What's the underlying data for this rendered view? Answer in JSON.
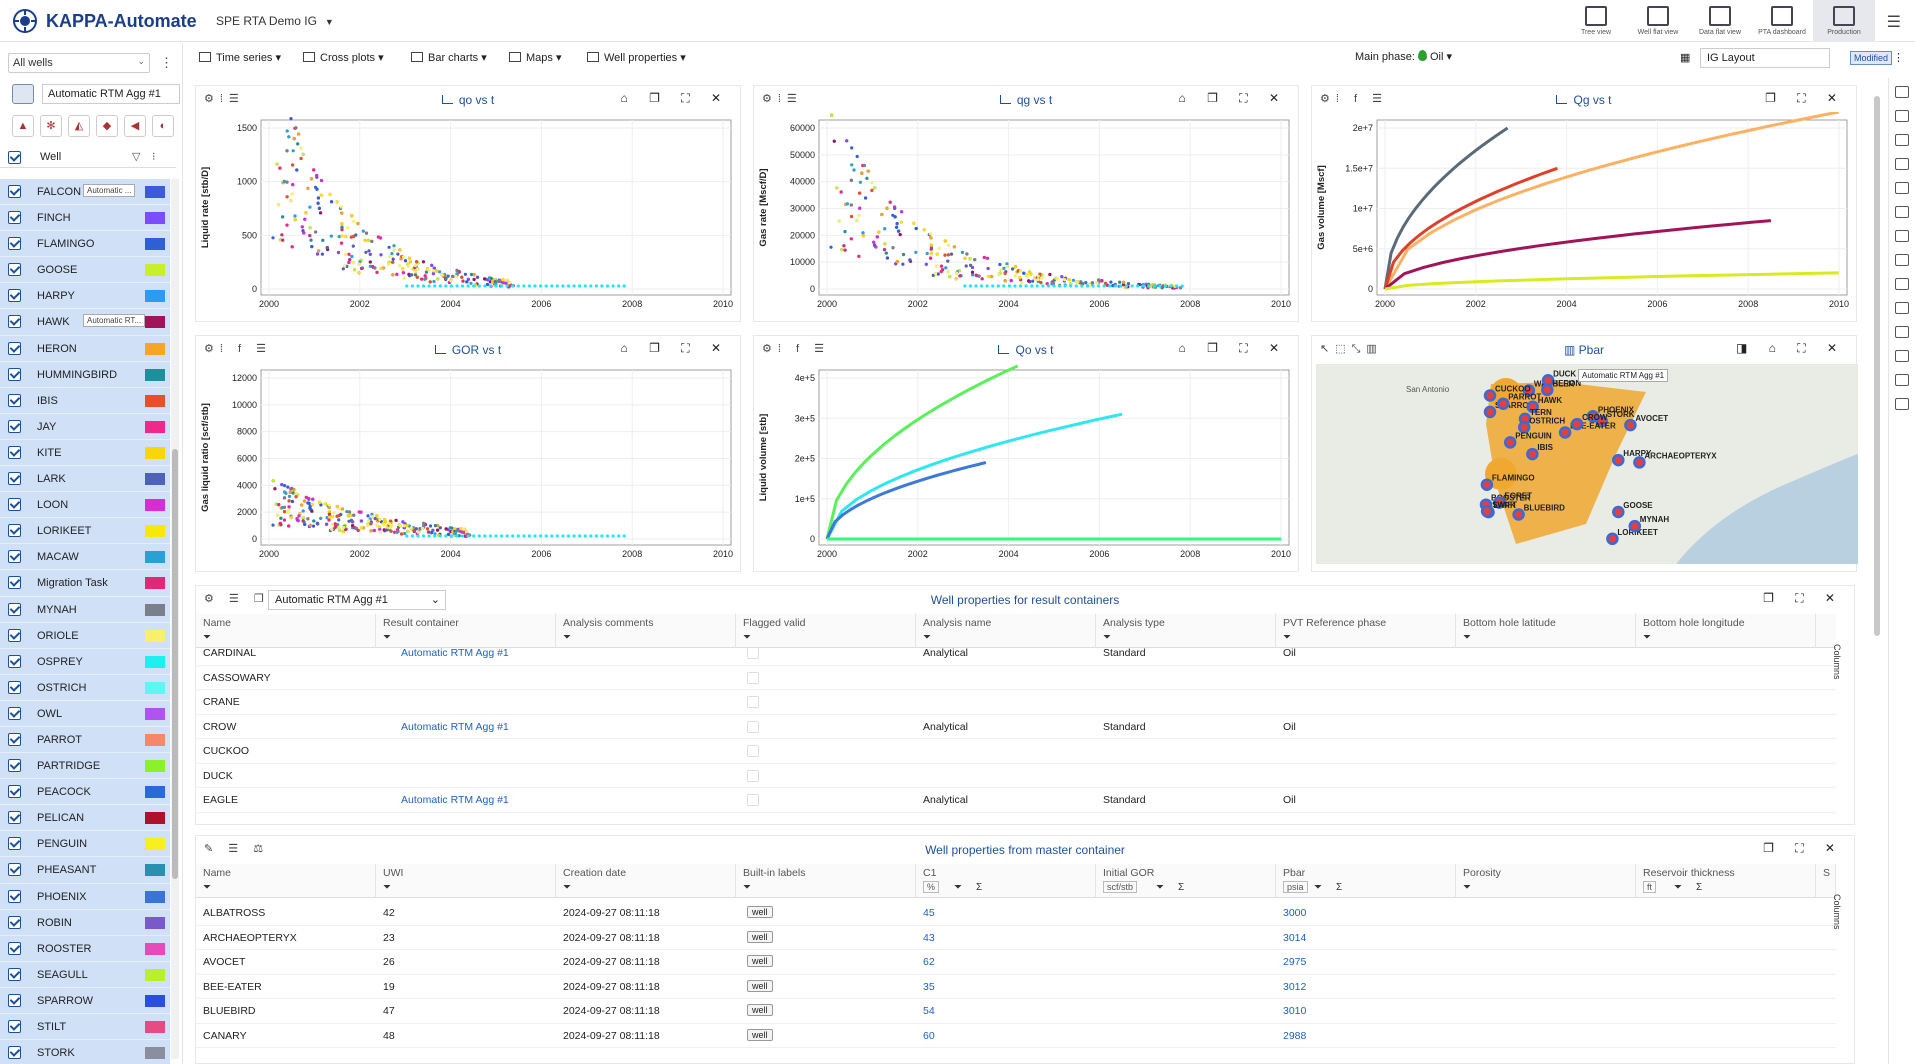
{
  "app": {
    "title": "KAPPA-Automate",
    "project": "SPE RTA Demo IG"
  },
  "views": [
    {
      "label": "Tree view",
      "icon": "tree-view-icon"
    },
    {
      "label": "Well flat view",
      "icon": "well-flat-view-icon"
    },
    {
      "label": "Data flat view",
      "icon": "data-flat-view-icon"
    },
    {
      "label": "PTA dashboard",
      "icon": "pta-dashboard-icon"
    },
    {
      "label": "Production",
      "icon": "production-icon"
    }
  ],
  "sidebar": {
    "filter": "All wells",
    "container": "Automatic RTM Agg #1",
    "column": "Well",
    "wells": [
      {
        "name": "FALCON",
        "tag": "Automatic ...",
        "color": "#3b5bdb"
      },
      {
        "name": "FINCH",
        "color": "#7b4dff"
      },
      {
        "name": "FLAMINGO",
        "color": "#2f5fd4"
      },
      {
        "name": "GOOSE",
        "color": "#c8f02a"
      },
      {
        "name": "HARPY",
        "color": "#2d9cf0"
      },
      {
        "name": "HAWK",
        "tag": "Automatic RT...",
        "color": "#a0155a"
      },
      {
        "name": "HERON",
        "color": "#f5a623"
      },
      {
        "name": "HUMMINGBIRD",
        "color": "#1f8f9c"
      },
      {
        "name": "IBIS",
        "color": "#e8502a"
      },
      {
        "name": "JAY",
        "color": "#f0288c"
      },
      {
        "name": "KITE",
        "color": "#f7d70a"
      },
      {
        "name": "LARK",
        "color": "#4f62b8"
      },
      {
        "name": "LOON",
        "color": "#d62ed6"
      },
      {
        "name": "LORIKEET",
        "color": "#f5e80a"
      },
      {
        "name": "MACAW",
        "color": "#2aa0d4"
      },
      {
        "name": "Migration Task",
        "color": "#e02876"
      },
      {
        "name": "MYNAH",
        "color": "#7a7f8c"
      },
      {
        "name": "ORIOLE",
        "color": "#f7f06a"
      },
      {
        "name": "OSPREY",
        "color": "#1ef0f0"
      },
      {
        "name": "OSTRICH",
        "color": "#5ff5f0"
      },
      {
        "name": "OWL",
        "color": "#b054f0"
      },
      {
        "name": "PARROT",
        "color": "#f5886a"
      },
      {
        "name": "PARTRIDGE",
        "color": "#8cf02a"
      },
      {
        "name": "PEACOCK",
        "color": "#2a6ad4"
      },
      {
        "name": "PELICAN",
        "color": "#b0102a"
      },
      {
        "name": "PENGUIN",
        "color": "#f7f01e"
      },
      {
        "name": "PHEASANT",
        "color": "#2a8fb0"
      },
      {
        "name": "PHOENIX",
        "color": "#3a74d8"
      },
      {
        "name": "ROBIN",
        "color": "#7a5ac8"
      },
      {
        "name": "ROOSTER",
        "color": "#e84ab8"
      },
      {
        "name": "SEAGULL",
        "color": "#b8f02a"
      },
      {
        "name": "SPARROW",
        "color": "#2a4fe0"
      },
      {
        "name": "STILT",
        "color": "#e84a84"
      },
      {
        "name": "STORK",
        "color": "#8a8fa0"
      }
    ]
  },
  "toolbar": {
    "time_series": "Time series",
    "cross_plots": "Cross plots",
    "bar_charts": "Bar charts",
    "maps": "Maps",
    "well_properties": "Well properties",
    "main_phase_label": "Main phase:",
    "main_phase": "Oil",
    "layout": "IG Layout",
    "modified": "Modified"
  },
  "charts": {
    "qo": {
      "title": "qo vs t",
      "ylabel": "Liquid rate [stb/D]",
      "yticks": [
        "0",
        "500",
        "1000",
        "1500"
      ],
      "xticks": [
        "2000",
        "2002",
        "2004",
        "2006",
        "2008",
        "2010"
      ]
    },
    "qg": {
      "title": "qg vs t",
      "ylabel": "Gas rate [Mscf/D]",
      "yticks": [
        "0",
        "10000",
        "20000",
        "30000",
        "40000",
        "50000",
        "60000"
      ],
      "xticks": [
        "2000",
        "2002",
        "2004",
        "2006",
        "2008",
        "2010"
      ]
    },
    "Qg": {
      "title": "Qg vs t",
      "ylabel": "Gas volume [Mscf]",
      "yticks": [
        "0",
        "5e+6",
        "1e+7",
        "1.5e+7",
        "2e+7"
      ],
      "xticks": [
        "2000",
        "2002",
        "2004",
        "2006",
        "2008",
        "2010"
      ]
    },
    "gor": {
      "title": "GOR vs t",
      "ylabel": "Gas liquid ratio [scf/stb]",
      "yticks": [
        "0",
        "2000",
        "4000",
        "6000",
        "8000",
        "10000",
        "12000"
      ],
      "xticks": [
        "2000",
        "2002",
        "2004",
        "2006",
        "2008",
        "2010"
      ]
    },
    "Qo": {
      "title": "Qo vs t",
      "ylabel": "Liquid volume [stb]",
      "yticks": [
        "0",
        "1e+5",
        "2e+5",
        "3e+5",
        "4e+5"
      ],
      "xticks": [
        "2000",
        "2002",
        "2004",
        "2006",
        "2008",
        "2010"
      ]
    },
    "pbar": {
      "title": "Pbar",
      "tag": "Automatic RTM Agg #1",
      "city": "San Antonio"
    }
  },
  "chart_data": [
    {
      "type": "scatter",
      "title": "qo vs t",
      "ylabel": "Liquid rate [stb/D]",
      "xlim": [
        2000,
        2010
      ],
      "ylim": [
        0,
        1500
      ]
    },
    {
      "type": "scatter",
      "title": "qg vs t",
      "ylabel": "Gas rate [Mscf/D]",
      "xlim": [
        2000,
        2010
      ],
      "ylim": [
        0,
        60000
      ]
    },
    {
      "type": "line",
      "title": "Qg vs t",
      "ylabel": "Gas volume [Mscf]",
      "xlim": [
        2000,
        2010
      ],
      "ylim": [
        0,
        20000000
      ],
      "series": [
        {
          "values": [
            [
              2000,
              0
            ],
            [
              2002.7,
              20000000
            ]
          ]
        },
        {
          "values": [
            [
              2000,
              0
            ],
            [
              2010,
              22000000
            ]
          ]
        },
        {
          "values": [
            [
              2000,
              0
            ],
            [
              2003.8,
              15000000
            ]
          ]
        },
        {
          "values": [
            [
              2000,
              0
            ],
            [
              2008.5,
              8500000
            ]
          ]
        },
        {
          "values": [
            [
              2000,
              0
            ],
            [
              2010,
              2000000
            ]
          ]
        }
      ]
    },
    {
      "type": "scatter",
      "title": "GOR vs t",
      "ylabel": "Gas liquid ratio [scf/stb]",
      "xlim": [
        2000,
        2010
      ],
      "ylim": [
        0,
        12000
      ]
    },
    {
      "type": "line",
      "title": "Qo vs t",
      "ylabel": "Liquid volume [stb]",
      "xlim": [
        2000,
        2010
      ],
      "ylim": [
        0,
        400000
      ],
      "series": [
        {
          "values": [
            [
              2000,
              0
            ],
            [
              2004.2,
              430000
            ]
          ]
        },
        {
          "values": [
            [
              2000,
              0
            ],
            [
              2006.5,
              310000
            ]
          ]
        },
        {
          "values": [
            [
              2000,
              0
            ],
            [
              2003.5,
              190000
            ]
          ]
        },
        {
          "values": [
            [
              2000,
              0
            ],
            [
              2010,
              0
            ]
          ]
        }
      ]
    }
  ],
  "map_wells": [
    "BOOSTER",
    "SPARROW",
    "GOOSE",
    "HAWK",
    "STORK",
    "TERN",
    "WARBLER",
    "ARCHAEOPTERYX",
    "PHOENIX",
    "FLAMINGO",
    "BEE-EATER",
    "IBIS",
    "BLUEBIRD",
    "DUCK",
    "OSTRICH",
    "EGRET",
    "CROW",
    "LORIKEET",
    "HERON",
    "LARK",
    "PARROT",
    "PENGUIN",
    "MYNAH",
    "HARPY",
    "CUCKOO",
    "AVOCET",
    "SWIFT"
  ],
  "result_table": {
    "title": "Well properties for result containers",
    "container": "Automatic RTM Agg #1",
    "columns": [
      "Name",
      "Result container",
      "Analysis comments",
      "Flagged valid",
      "Analysis name",
      "Analysis type",
      "PVT Reference phase",
      "Bottom hole latitude",
      "Bottom hole longitude"
    ],
    "rows": [
      {
        "name": "CARDINAL",
        "container": "Automatic RTM Agg #1",
        "analysis": "Analytical",
        "type": "Standard",
        "pvt": "Oil"
      },
      {
        "name": "CASSOWARY",
        "container": "",
        "analysis": "",
        "type": "",
        "pvt": ""
      },
      {
        "name": "CRANE",
        "container": "",
        "analysis": "",
        "type": "",
        "pvt": ""
      },
      {
        "name": "CROW",
        "container": "Automatic RTM Agg #1",
        "analysis": "Analytical",
        "type": "Standard",
        "pvt": "Oil"
      },
      {
        "name": "CUCKOO",
        "container": "",
        "analysis": "",
        "type": "",
        "pvt": ""
      },
      {
        "name": "DUCK",
        "container": "",
        "analysis": "",
        "type": "",
        "pvt": ""
      },
      {
        "name": "EAGLE",
        "container": "Automatic RTM Agg #1",
        "analysis": "Analytical",
        "type": "Standard",
        "pvt": "Oil"
      }
    ],
    "columns_tab": "Columns"
  },
  "master_table": {
    "title": "Well properties from master container",
    "columns": [
      "Name",
      "UWI",
      "Creation date",
      "Built-in labels",
      "C1",
      "Initial GOR",
      "Pbar",
      "Porosity",
      "Reservoir thickness",
      "S"
    ],
    "units": {
      "c1": "%",
      "gor": "scf/stb",
      "pbar": "psia",
      "thick": "ft"
    },
    "rows": [
      {
        "name": "ALBATROSS",
        "uwi": "42",
        "date": "2024-09-27 08:11:18",
        "label": "well",
        "c1": "45",
        "pbar": "3000"
      },
      {
        "name": "ARCHAEOPTERYX",
        "uwi": "23",
        "date": "2024-09-27 08:11:18",
        "label": "well",
        "c1": "43",
        "pbar": "3014"
      },
      {
        "name": "AVOCET",
        "uwi": "26",
        "date": "2024-09-27 08:11:18",
        "label": "well",
        "c1": "62",
        "pbar": "2975"
      },
      {
        "name": "BEE-EATER",
        "uwi": "19",
        "date": "2024-09-27 08:11:18",
        "label": "well",
        "c1": "35",
        "pbar": "3012"
      },
      {
        "name": "BLUEBIRD",
        "uwi": "47",
        "date": "2024-09-27 08:11:18",
        "label": "well",
        "c1": "54",
        "pbar": "3010"
      },
      {
        "name": "CANARY",
        "uwi": "48",
        "date": "2024-09-27 08:11:18",
        "label": "well",
        "c1": "60",
        "pbar": "2988"
      }
    ],
    "columns_tab": "Columns",
    "sigma": "Σ"
  }
}
